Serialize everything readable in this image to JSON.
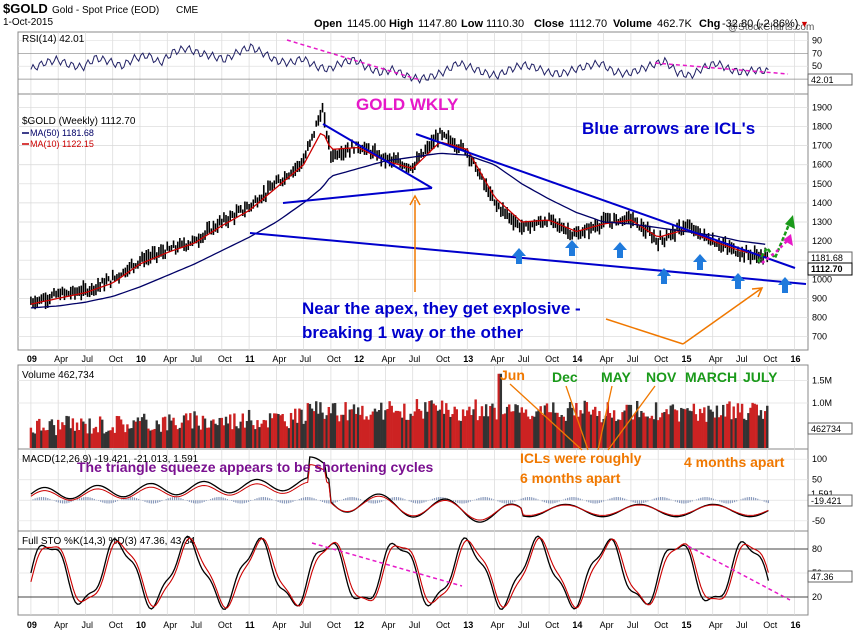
{
  "header": {
    "symbol": "$GOLD",
    "name": "Gold - Spot Price (EOD)",
    "exchange": "CME",
    "date": "1-Oct-2015",
    "watermark": "@StockCharts.com",
    "quote": {
      "open_label": "Open",
      "open": "1145.00",
      "high_label": "High",
      "high": "1147.80",
      "low_label": "Low",
      "low": "1110.30",
      "close_label": "Close",
      "close": "1112.70",
      "volume_label": "Volume",
      "volume": "462.7K",
      "chg_label": "Chg",
      "chg": "-32.80 (-2.86%)",
      "chg_marker": "▼"
    }
  },
  "colors": {
    "price": "#cc0000",
    "ma50": "#000066",
    "ma10": "#cc0000",
    "trendline": "#0000cc",
    "annotation_blue": "#0000cc",
    "annotation_magenta": "#e619c8",
    "annotation_orange": "#f07800",
    "annotation_green": "#1a9a1a",
    "annotation_purple": "#7a1090",
    "arrow_blue": "#1f7adc",
    "grid": "#b0b0b0"
  },
  "chart_data": [
    {
      "type": "line",
      "panel": "rsi",
      "label": "RSI(14) 42.01",
      "yticks": [
        30,
        50,
        70,
        90
      ],
      "ytick_labels": [
        "30",
        "50",
        "70",
        "90"
      ],
      "ylim": [
        10,
        100
      ],
      "last_value": "42.01",
      "series": [
        {
          "name": "RSI(14)",
          "values": [
            45,
            55,
            60,
            52,
            48,
            63,
            58,
            50,
            62,
            67,
            55,
            72,
            78,
            70,
            66,
            60,
            72,
            80,
            70,
            58,
            55,
            62,
            50,
            45,
            55,
            60,
            48,
            40,
            45,
            35,
            30,
            34,
            42,
            55,
            48,
            40,
            35,
            45,
            52,
            48,
            40,
            38,
            45,
            50,
            55,
            42,
            38,
            44,
            52,
            58,
            40,
            35,
            48,
            55,
            45,
            40,
            44,
            42
          ]
        }
      ]
    },
    {
      "type": "line",
      "panel": "price",
      "title": "$GOLD (Weekly) 1112.70",
      "legend": [
        "MA(50) 1181.68",
        "MA(10) 1122.15"
      ],
      "x_tick_labels": [
        "09",
        "Apr",
        "Jul",
        "Oct",
        "10",
        "Apr",
        "Jul",
        "Oct",
        "11",
        "Apr",
        "Jul",
        "Oct",
        "12",
        "Apr",
        "Jul",
        "Oct",
        "13",
        "Apr",
        "Jul",
        "Oct",
        "14",
        "Apr",
        "Jul",
        "Oct",
        "15",
        "Apr",
        "Jul",
        "Oct",
        "16"
      ],
      "yticks": [
        700,
        800,
        900,
        1000,
        1100,
        1200,
        1300,
        1400,
        1500,
        1600,
        1700,
        1800,
        1900
      ],
      "ylim": [
        640,
        1960
      ],
      "last_value_labels": [
        "1181.68",
        "1112.70"
      ],
      "x": [
        2009.0,
        2009.25,
        2009.5,
        2009.75,
        2010.0,
        2010.25,
        2010.5,
        2010.75,
        2011.0,
        2011.25,
        2011.5,
        2011.67,
        2011.75,
        2012.0,
        2012.25,
        2012.5,
        2012.75,
        2013.0,
        2013.25,
        2013.5,
        2013.75,
        2014.0,
        2014.25,
        2014.5,
        2014.75,
        2015.0,
        2015.25,
        2015.5,
        2015.75
      ],
      "series": [
        {
          "name": "$GOLD",
          "values": [
            880,
            920,
            940,
            1000,
            1100,
            1150,
            1200,
            1300,
            1380,
            1500,
            1620,
            1890,
            1650,
            1700,
            1630,
            1590,
            1760,
            1670,
            1400,
            1270,
            1310,
            1230,
            1300,
            1320,
            1200,
            1280,
            1200,
            1140,
            1113
          ]
        },
        {
          "name": "MA(50)",
          "values": [
            850,
            860,
            880,
            910,
            960,
            1020,
            1080,
            1150,
            1220,
            1300,
            1400,
            1480,
            1540,
            1580,
            1620,
            1640,
            1660,
            1650,
            1600,
            1500,
            1420,
            1350,
            1300,
            1290,
            1270,
            1250,
            1230,
            1200,
            1182
          ]
        },
        {
          "name": "MA(10)",
          "values": [
            870,
            900,
            930,
            980,
            1080,
            1140,
            1190,
            1280,
            1360,
            1480,
            1600,
            1780,
            1680,
            1690,
            1620,
            1580,
            1720,
            1680,
            1430,
            1300,
            1310,
            1250,
            1290,
            1310,
            1220,
            1260,
            1200,
            1150,
            1122
          ]
        }
      ],
      "annotations": [
        "GOLD WKLY",
        "Blue arrows are ICL's",
        "Near the apex, they get explosive -",
        "breaking 1 way or the other"
      ]
    },
    {
      "type": "bar",
      "panel": "volume",
      "label": "Volume 462,734",
      "ytick_labels": [
        "1.0M",
        "1.5M"
      ],
      "last_value": "462734",
      "annotations": [
        "Jun",
        "Dec",
        "MAY",
        "NOV",
        "MARCH",
        "JULY",
        "ICLs were roughly",
        "6 months apart",
        "4 months apart"
      ]
    },
    {
      "type": "line",
      "panel": "macd",
      "label": "MACD(12,26,9) -19.421, -21.013, 1.591",
      "yticks": [
        -50,
        0,
        50,
        100
      ],
      "ytick_labels": [
        "-50",
        "0",
        "50",
        "100"
      ],
      "ylim": [
        -70,
        120
      ],
      "last_value_labels": [
        "1.591",
        "-19.421"
      ],
      "annotation": "The triangle squeeze appears to   be shortening cycles"
    },
    {
      "type": "line",
      "panel": "stochastic",
      "label": "Full STO %K(14,3) %D(3) 47.36, 43.34",
      "yticks": [
        20,
        50,
        80
      ],
      "ytick_labels": [
        "20",
        "50",
        "80"
      ],
      "ylim": [
        0,
        100
      ],
      "last_value": "47.36"
    }
  ]
}
